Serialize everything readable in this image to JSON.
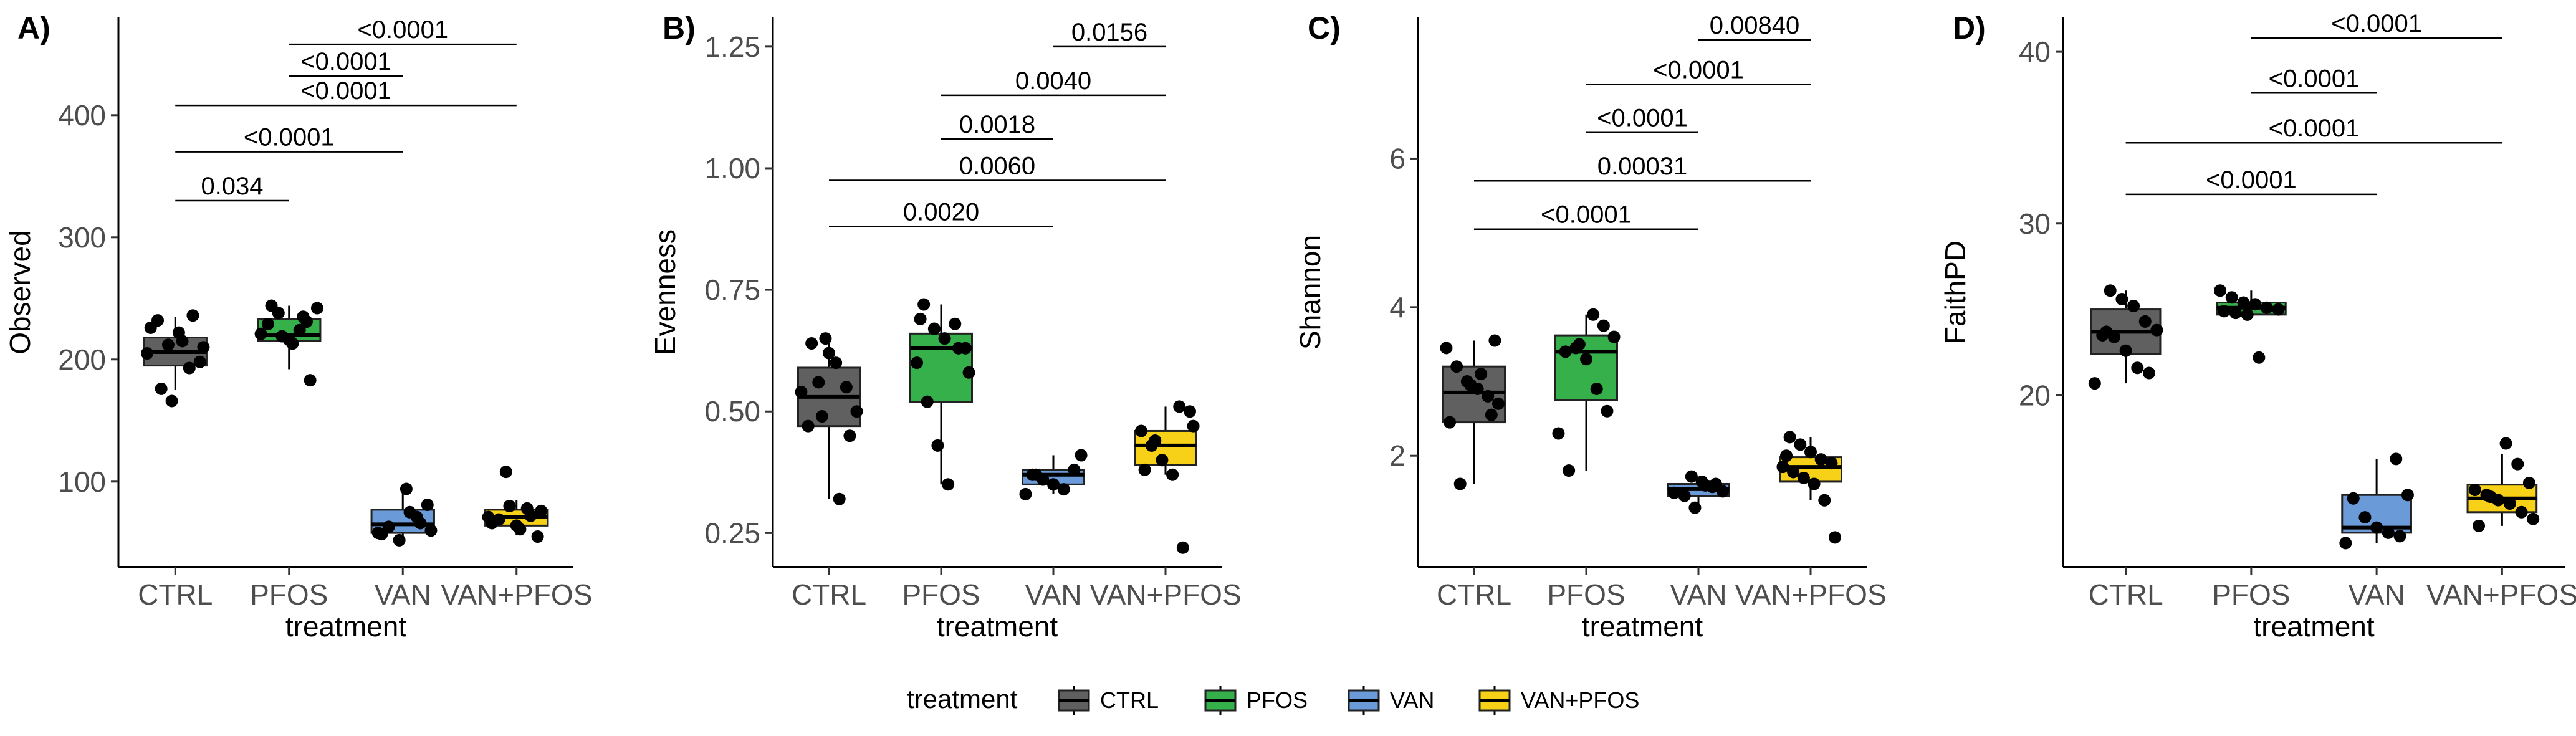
{
  "legend": {
    "title": "treatment",
    "items": [
      {
        "label": "CTRL",
        "color": "#606060"
      },
      {
        "label": "PFOS",
        "color": "#36b04a"
      },
      {
        "label": "VAN",
        "color": "#6a9bd8"
      },
      {
        "label": "VAN+PFOS",
        "color": "#f7d117"
      }
    ]
  },
  "chart_data": [
    {
      "type": "box",
      "panel": "A)",
      "xlabel": "treatment",
      "ylabel": "Observed",
      "categories": [
        "CTRL",
        "PFOS",
        "VAN",
        "VAN+PFOS"
      ],
      "ylim": [
        30,
        480
      ],
      "yticks": [
        100,
        200,
        300,
        400
      ],
      "boxes": [
        {
          "q1": 195,
          "median": 206,
          "q3": 218,
          "lo": 175,
          "hi": 235
        },
        {
          "q1": 215,
          "median": 220,
          "q3": 233,
          "lo": 192,
          "hi": 244
        },
        {
          "q1": 58,
          "median": 65,
          "q3": 77,
          "lo": 52,
          "hi": 95
        },
        {
          "q1": 64,
          "median": 71,
          "q3": 77,
          "lo": 56,
          "hi": 85
        }
      ],
      "points": [
        [
          205,
          232,
          212,
          222,
          193,
          198,
          226,
          176,
          166,
          215,
          236,
          210
        ],
        [
          231,
          242,
          229,
          238,
          216,
          224,
          183,
          221,
          244,
          219,
          213,
          235
        ],
        [
          94,
          71,
          81,
          58,
          63,
          52,
          75,
          66,
          60,
          57
        ],
        [
          108,
          64,
          78,
          55,
          71,
          69,
          80,
          61,
          72,
          76,
          66
        ]
      ],
      "comparisons": [
        {
          "from": 0,
          "to": 1,
          "y": 330,
          "label": "0.034"
        },
        {
          "from": 0,
          "to": 2,
          "y": 370,
          "label": "<0.0001"
        },
        {
          "from": 0,
          "to": 3,
          "y": 408,
          "label": "<0.0001"
        },
        {
          "from": 1,
          "to": 2,
          "y": 432,
          "label": "<0.0001"
        },
        {
          "from": 1,
          "to": 3,
          "y": 458,
          "label": "<0.0001"
        }
      ]
    },
    {
      "type": "box",
      "panel": "B)",
      "xlabel": "treatment",
      "ylabel": "Evenness",
      "categories": [
        "CTRL",
        "PFOS",
        "VAN",
        "VAN+PFOS"
      ],
      "ylim": [
        0.18,
        1.31
      ],
      "yticks": [
        0.25,
        0.5,
        0.75,
        1.0,
        1.25
      ],
      "ytick_labels": [
        "0.25",
        "0.50",
        "0.75",
        "1.00",
        "1.25"
      ],
      "boxes": [
        {
          "q1": 0.47,
          "median": 0.53,
          "q3": 0.59,
          "lo": 0.32,
          "hi": 0.65
        },
        {
          "q1": 0.52,
          "median": 0.63,
          "q3": 0.66,
          "lo": 0.35,
          "hi": 0.72
        },
        {
          "q1": 0.35,
          "median": 0.37,
          "q3": 0.38,
          "lo": 0.33,
          "hi": 0.41
        },
        {
          "q1": 0.39,
          "median": 0.43,
          "q3": 0.46,
          "lo": 0.37,
          "hi": 0.51
        }
      ],
      "points": [
        [
          0.65,
          0.6,
          0.55,
          0.5,
          0.47,
          0.56,
          0.62,
          0.32,
          0.45,
          0.54,
          0.64,
          0.49
        ],
        [
          0.72,
          0.67,
          0.65,
          0.68,
          0.63,
          0.6,
          0.52,
          0.43,
          0.35,
          0.63,
          0.58,
          0.69
        ],
        [
          0.41,
          0.37,
          0.36,
          0.35,
          0.34,
          0.38,
          0.33,
          0.37
        ],
        [
          0.51,
          0.5,
          0.46,
          0.43,
          0.4,
          0.37,
          0.22,
          0.47,
          0.38,
          0.44
        ]
      ],
      "comparisons": [
        {
          "from": 0,
          "to": 2,
          "y": 0.88,
          "label": "0.0020"
        },
        {
          "from": 0,
          "to": 3,
          "y": 0.975,
          "label": "0.0060"
        },
        {
          "from": 1,
          "to": 2,
          "y": 1.06,
          "label": "0.0018"
        },
        {
          "from": 1,
          "to": 3,
          "y": 1.15,
          "label": "0.0040"
        },
        {
          "from": 2,
          "to": 3,
          "y": 1.25,
          "label": "0.0156"
        }
      ]
    },
    {
      "type": "box",
      "panel": "C)",
      "xlabel": "treatment",
      "ylabel": "Shannon",
      "categories": [
        "CTRL",
        "PFOS",
        "VAN",
        "VAN+PFOS"
      ],
      "ylim": [
        0.5,
        7.9
      ],
      "yticks": [
        2,
        4,
        6
      ],
      "boxes": [
        {
          "q1": 2.45,
          "median": 2.85,
          "q3": 3.2,
          "lo": 1.62,
          "hi": 3.55
        },
        {
          "q1": 2.75,
          "median": 3.4,
          "q3": 3.62,
          "lo": 1.8,
          "hi": 3.9
        },
        {
          "q1": 1.46,
          "median": 1.55,
          "q3": 1.62,
          "lo": 1.3,
          "hi": 1.72
        },
        {
          "q1": 1.65,
          "median": 1.85,
          "q3": 1.98,
          "lo": 1.4,
          "hi": 2.25
        }
      ],
      "points": [
        [
          3.55,
          3.45,
          3.2,
          3.0,
          2.9,
          2.8,
          2.7,
          2.45,
          1.62,
          2.95,
          3.1,
          2.55
        ],
        [
          3.9,
          3.75,
          3.6,
          3.4,
          3.45,
          3.3,
          2.9,
          2.6,
          2.3,
          1.8,
          3.5
        ],
        [
          1.72,
          1.65,
          1.58,
          1.52,
          1.5,
          1.46,
          1.3,
          1.6,
          1.62
        ],
        [
          2.25,
          2.15,
          2.05,
          1.95,
          1.9,
          1.85,
          1.78,
          1.7,
          1.62,
          1.4,
          0.9,
          2.0
        ]
      ],
      "comparisons": [
        {
          "from": 0,
          "to": 2,
          "y": 5.05,
          "label": "<0.0001"
        },
        {
          "from": 0,
          "to": 3,
          "y": 5.7,
          "label": "0.00031"
        },
        {
          "from": 1,
          "to": 2,
          "y": 6.35,
          "label": "<0.0001"
        },
        {
          "from": 1,
          "to": 3,
          "y": 7.0,
          "label": "<0.0001"
        },
        {
          "from": 2,
          "to": 3,
          "y": 7.6,
          "label": "0.00840"
        }
      ]
    },
    {
      "type": "box",
      "panel": "D)",
      "xlabel": "treatment",
      "ylabel": "FaithPD",
      "categories": [
        "CTRL",
        "PFOS",
        "VAN",
        "VAN+PFOS"
      ],
      "ylim": [
        10,
        42
      ],
      "yticks": [
        20,
        30,
        40
      ],
      "boxes": [
        {
          "q1": 22.4,
          "median": 23.7,
          "q3": 25.0,
          "lo": 20.7,
          "hi": 26.1
        },
        {
          "q1": 24.7,
          "median": 25.1,
          "q3": 25.4,
          "lo": 24.5,
          "hi": 26.1
        },
        {
          "q1": 12.0,
          "median": 12.3,
          "q3": 14.2,
          "lo": 11.4,
          "hi": 16.3
        },
        {
          "q1": 13.2,
          "median": 14.0,
          "q3": 14.8,
          "lo": 12.4,
          "hi": 16.6
        }
      ],
      "points": [
        [
          26.1,
          25.6,
          25.2,
          24.3,
          23.8,
          23.5,
          23.4,
          22.6,
          21.6,
          21.3,
          20.7,
          23.7
        ],
        [
          26.1,
          25.7,
          25.4,
          25.3,
          25.1,
          25.0,
          24.9,
          24.8,
          24.7,
          22.2
        ],
        [
          16.3,
          14.2,
          14.0,
          12.9,
          12.3,
          12.0,
          11.8,
          11.4
        ],
        [
          17.2,
          16.0,
          14.9,
          14.5,
          14.2,
          13.9,
          13.7,
          13.2,
          12.8,
          12.4,
          14.1
        ]
      ],
      "comparisons": [
        {
          "from": 0,
          "to": 2,
          "y": 31.7,
          "label": "<0.0001"
        },
        {
          "from": 0,
          "to": 3,
          "y": 34.7,
          "label": "<0.0001"
        },
        {
          "from": 1,
          "to": 2,
          "y": 37.6,
          "label": "<0.0001"
        },
        {
          "from": 1,
          "to": 3,
          "y": 40.8,
          "label": "<0.0001"
        }
      ]
    }
  ]
}
